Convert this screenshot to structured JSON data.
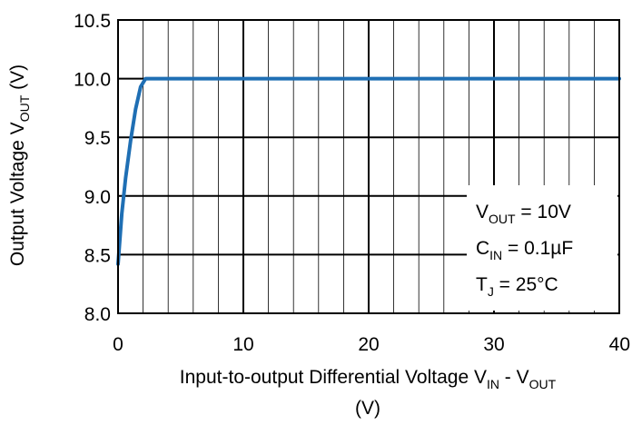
{
  "chart_data": {
    "type": "line",
    "xlabel_main": "Input-to-output Differential Voltage V",
    "xlabel_sub1": "IN",
    "xlabel_mid": " - V",
    "xlabel_sub2": "OUT",
    "xlabel_unit": "(V)",
    "ylabel_main": "Output Voltage V",
    "ylabel_sub": "OUT",
    "ylabel_unit": " (V)",
    "xlim": [
      0,
      40
    ],
    "ylim": [
      8.0,
      10.5
    ],
    "x_ticks": [
      0,
      10,
      20,
      30,
      40
    ],
    "x_tick_labels": [
      "0",
      "10",
      "20",
      "30",
      "40"
    ],
    "y_ticks": [
      8.0,
      8.5,
      9.0,
      9.5,
      10.0,
      10.5
    ],
    "y_tick_labels": [
      "8.0",
      "8.5",
      "9.0",
      "9.5",
      "10.0",
      "10.5"
    ],
    "grid": true,
    "series": [
      {
        "color": "#1f6fb4",
        "x": [
          0,
          0.3,
          0.6,
          1.0,
          1.4,
          1.8,
          2.2,
          10,
          20,
          30,
          40
        ],
        "y": [
          8.42,
          8.85,
          9.15,
          9.47,
          9.74,
          9.93,
          10.0,
          10.0,
          10.0,
          10.0,
          10.0
        ]
      }
    ],
    "annotations": [
      {
        "main": "V",
        "sub": "OUT",
        "rest": " = 10V"
      },
      {
        "main": "C",
        "sub": "IN",
        "rest": " = 0.1µF"
      },
      {
        "main": "T",
        "sub": "J",
        "rest": " = 25°C"
      }
    ]
  }
}
